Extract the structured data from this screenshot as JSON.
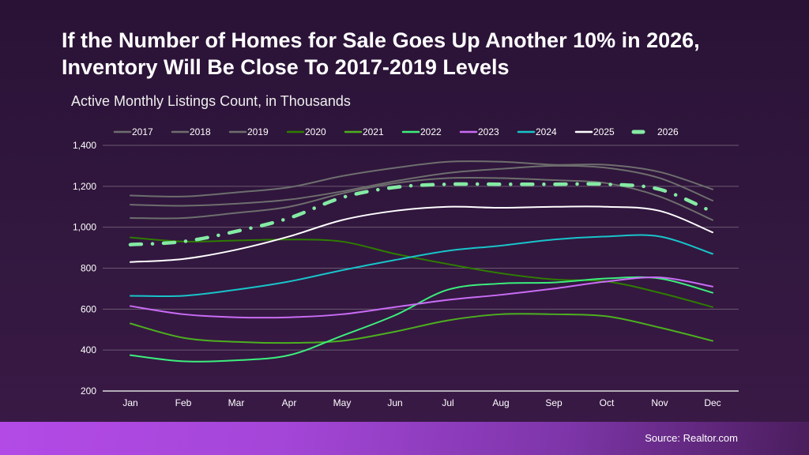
{
  "chart_data": {
    "type": "line",
    "title": "If the Number of Homes for Sale Goes Up Another 10% in 2026, Inventory Will Be Close To 2017-2019 Levels",
    "subtitle": "Active Monthly Listings Count, in Thousands",
    "categories": [
      "Jan",
      "Feb",
      "Mar",
      "Apr",
      "May",
      "Jun",
      "Jul",
      "Aug",
      "Sep",
      "Oct",
      "Nov",
      "Dec"
    ],
    "ylim": [
      200,
      1400
    ],
    "yticks": [
      200,
      400,
      600,
      800,
      1000,
      1200,
      1400
    ],
    "ytick_labels": [
      "200",
      "400",
      "600",
      "800",
      "1,000",
      "1,200",
      "1,400"
    ],
    "grid": true,
    "legend_placement": "top",
    "series": [
      {
        "name": "2017",
        "color": "#6e6e6e",
        "style": "solid",
        "values": [
          1155,
          1150,
          1170,
          1195,
          1250,
          1290,
          1320,
          1320,
          1305,
          1305,
          1270,
          1185
        ]
      },
      {
        "name": "2018",
        "color": "#6e6e6e",
        "style": "solid",
        "values": [
          1110,
          1105,
          1115,
          1135,
          1175,
          1225,
          1265,
          1285,
          1300,
          1290,
          1240,
          1130
        ]
      },
      {
        "name": "2019",
        "color": "#6e6e6e",
        "style": "solid",
        "values": [
          1045,
          1045,
          1070,
          1100,
          1165,
          1215,
          1240,
          1240,
          1230,
          1215,
          1150,
          1035
        ]
      },
      {
        "name": "2020",
        "color": "#2e7d00",
        "style": "solid",
        "values": [
          950,
          930,
          935,
          940,
          930,
          870,
          820,
          775,
          745,
          735,
          680,
          610
        ]
      },
      {
        "name": "2021",
        "color": "#4cb01e",
        "style": "solid",
        "values": [
          530,
          460,
          440,
          435,
          445,
          490,
          545,
          575,
          575,
          565,
          510,
          445
        ]
      },
      {
        "name": "2022",
        "color": "#3cef7c",
        "style": "solid",
        "values": [
          375,
          345,
          350,
          375,
          470,
          570,
          695,
          725,
          730,
          750,
          750,
          680
        ]
      },
      {
        "name": "2023",
        "color": "#c96cf5",
        "style": "solid",
        "values": [
          615,
          575,
          560,
          560,
          575,
          610,
          645,
          670,
          700,
          735,
          755,
          710
        ]
      },
      {
        "name": "2024",
        "color": "#18c4c9",
        "style": "solid",
        "values": [
          665,
          665,
          695,
          735,
          790,
          840,
          885,
          910,
          940,
          955,
          955,
          870
        ]
      },
      {
        "name": "2025",
        "color": "#ffffff",
        "style": "solid",
        "values": [
          830,
          845,
          890,
          955,
          1035,
          1080,
          1100,
          1095,
          1100,
          1100,
          1080,
          975
        ]
      },
      {
        "name": "2026",
        "color": "#84eaa4",
        "style": "dash-dot",
        "values": [
          915,
          930,
          980,
          1045,
          1145,
          1195,
          1210,
          1210,
          1210,
          1210,
          1185,
          1075
        ]
      }
    ]
  },
  "footer": {
    "source": "Source: Realtor.com"
  }
}
